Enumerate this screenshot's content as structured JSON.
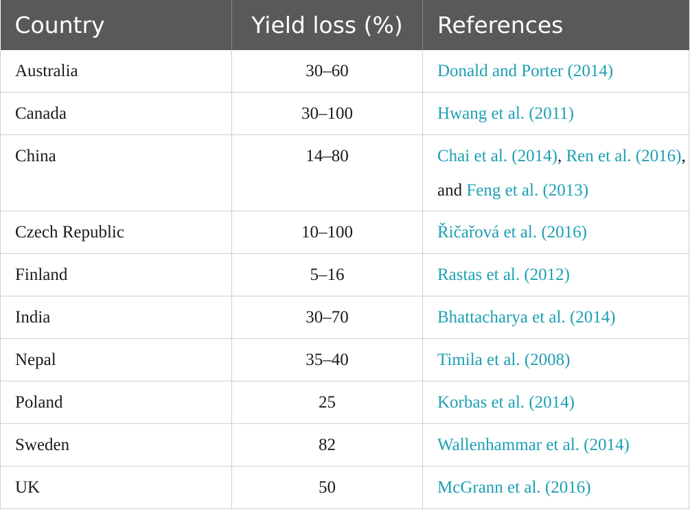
{
  "table": {
    "headers": [
      "Country",
      "Yield loss (%)",
      "References"
    ],
    "rows": [
      {
        "country": "Australia",
        "yield_loss": "30–60",
        "refs": [
          {
            "t": "Donald and Porter (2014)",
            "link": true
          }
        ]
      },
      {
        "country": "Canada",
        "yield_loss": "30–100",
        "refs": [
          {
            "t": "Hwang et al. (2011)",
            "link": true
          }
        ]
      },
      {
        "country": "China",
        "yield_loss": "14–80",
        "refs": [
          {
            "t": "Chai et al. (2014)",
            "link": true
          },
          {
            "t": ", ",
            "link": false
          },
          {
            "t": "Ren et al. (2016)",
            "link": true
          },
          {
            "t": ", and ",
            "link": false
          },
          {
            "t": "Feng et al. (2013)",
            "link": true
          }
        ]
      },
      {
        "country": "Czech Republic",
        "yield_loss": "10–100",
        "refs": [
          {
            "t": "Řičařová et al. (2016)",
            "link": true
          }
        ]
      },
      {
        "country": "Finland",
        "yield_loss": "5–16",
        "refs": [
          {
            "t": "Rastas et al. (2012)",
            "link": true
          }
        ]
      },
      {
        "country": "India",
        "yield_loss": "30–70",
        "refs": [
          {
            "t": "Bhattacharya et al. (2014)",
            "link": true
          }
        ]
      },
      {
        "country": "Nepal",
        "yield_loss": "35–40",
        "refs": [
          {
            "t": "Timila et al. (2008)",
            "link": true
          }
        ]
      },
      {
        "country": "Poland",
        "yield_loss": "25",
        "refs": [
          {
            "t": "Korbas et al. (2014)",
            "link": true
          }
        ]
      },
      {
        "country": "Sweden",
        "yield_loss": "82",
        "refs": [
          {
            "t": "Wallenhammar et al. (2014)",
            "link": true
          }
        ]
      },
      {
        "country": "UK",
        "yield_loss": "50",
        "refs": [
          {
            "t": "McGrann et al. (2016)",
            "link": true
          }
        ]
      }
    ]
  },
  "colors": {
    "header_bg": "#58595b",
    "header_text": "#ffffff",
    "link": "#1c9fb3",
    "border": "#cfcfcf"
  }
}
